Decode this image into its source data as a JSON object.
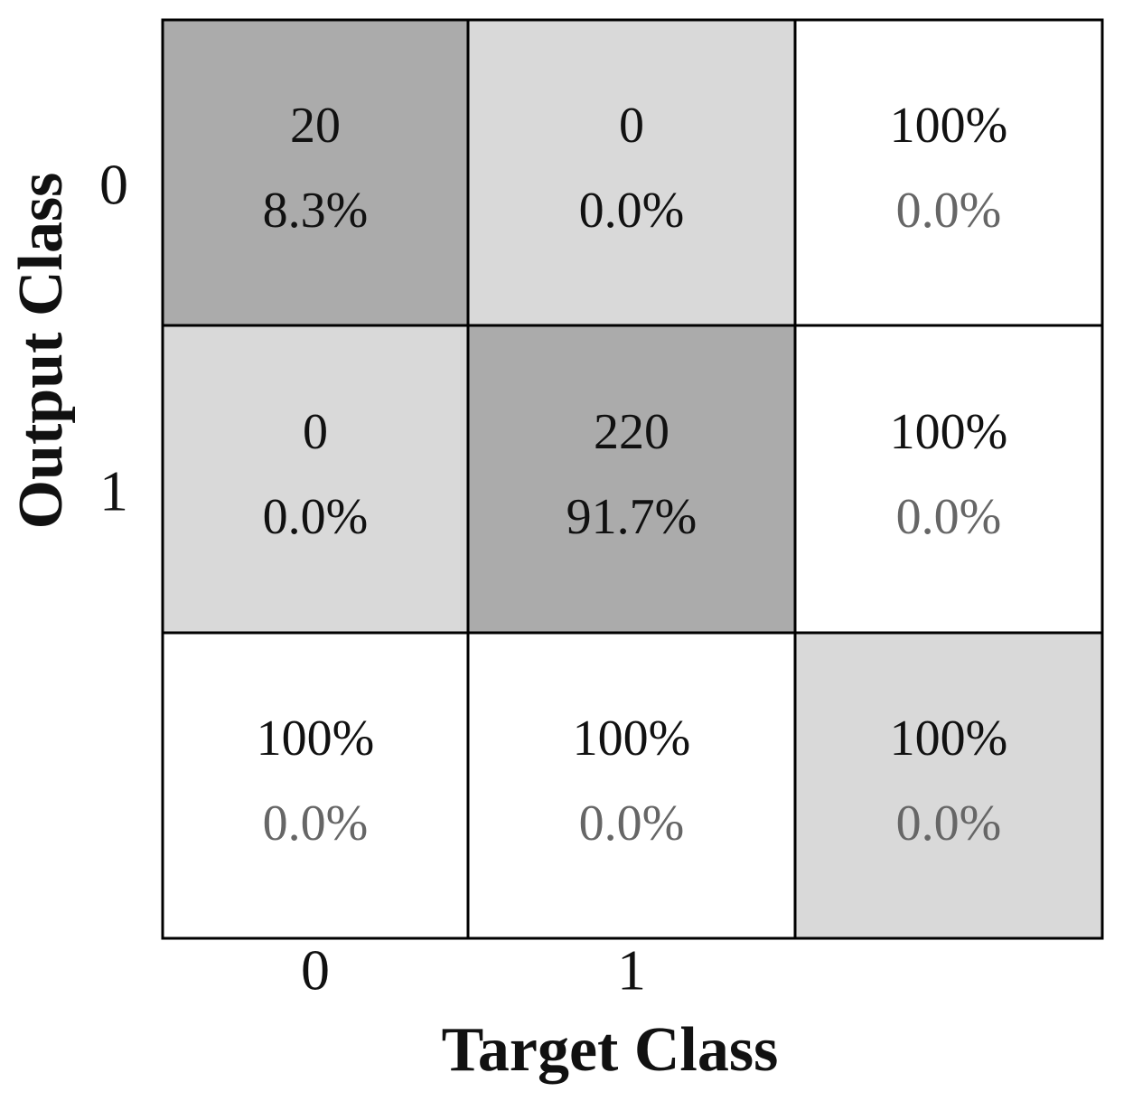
{
  "chart_data": {
    "type": "confusion_matrix",
    "x_label": "Target Class",
    "y_label": "Output Class",
    "x_categories": [
      "0",
      "1",
      null
    ],
    "y_categories": [
      "0",
      "1",
      null
    ],
    "counts": [
      [
        20,
        0
      ],
      [
        0,
        220
      ]
    ],
    "percents": [
      [
        8.3,
        0.0
      ],
      [
        0.0,
        91.7
      ]
    ],
    "percent_labels": [
      [
        "8.3%",
        "0.0%"
      ],
      [
        "0.0%",
        "91.7%"
      ]
    ],
    "row_accuracy": [
      100,
      100
    ],
    "row_accuracy_labels": [
      "100%",
      "100%"
    ],
    "row_error": [
      0.0,
      0.0
    ],
    "row_error_labels": [
      "0.0%",
      "0.0%"
    ],
    "col_accuracy": [
      100,
      100
    ],
    "col_accuracy_labels": [
      "100%",
      "100%"
    ],
    "col_error": [
      0.0,
      0.0
    ],
    "col_error_labels": [
      "0.0%",
      "0.0%"
    ],
    "overall_accuracy": 100,
    "overall_accuracy_label": "100%",
    "overall_error": 0.0,
    "overall_error_label": "0.0%",
    "colors": {
      "diagonal": "#ababab",
      "off_diagonal": "#d9d9d9",
      "summary": "#ffffff",
      "overall": "#d9d9d9",
      "error_text": "#666666"
    }
  }
}
